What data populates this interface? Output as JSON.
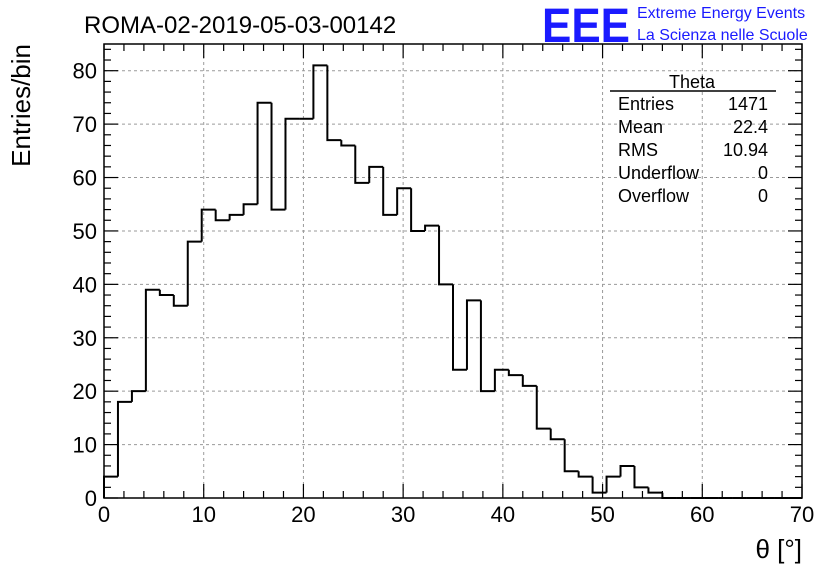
{
  "chart_data": {
    "type": "bar",
    "title": "ROMA-02-2019-05-03-00142",
    "xlabel": "θ [°]",
    "ylabel": "Entries/bin",
    "xlim": [
      0,
      70
    ],
    "ylim": [
      0,
      85
    ],
    "x_ticks": [
      0,
      10,
      20,
      30,
      40,
      50,
      60,
      70
    ],
    "y_ticks": [
      0,
      10,
      20,
      30,
      40,
      50,
      60,
      70,
      80
    ],
    "grid": true,
    "bin_width": 1.4,
    "values": [
      4,
      18,
      20,
      39,
      38,
      36,
      48,
      54,
      52,
      53,
      55,
      74,
      54,
      71,
      71,
      81,
      67,
      66,
      59,
      62,
      53,
      58,
      50,
      51,
      40,
      24,
      37,
      20,
      24,
      23,
      21,
      13,
      11,
      5,
      4,
      1,
      4,
      6,
      2,
      1,
      0,
      0,
      0,
      0,
      0,
      0,
      0,
      0,
      0,
      0
    ]
  },
  "stats": {
    "title": "Theta",
    "rows": [
      {
        "label": "Entries",
        "value": "1471"
      },
      {
        "label": "Mean",
        "value": "22.4"
      },
      {
        "label": "RMS",
        "value": "10.94"
      },
      {
        "label": "Underflow",
        "value": "0"
      },
      {
        "label": "Overflow",
        "value": "0"
      }
    ]
  },
  "brand": {
    "logo": "EEE",
    "line1": "Extreme Energy Events",
    "line2": "La Scienza nelle Scuole"
  }
}
